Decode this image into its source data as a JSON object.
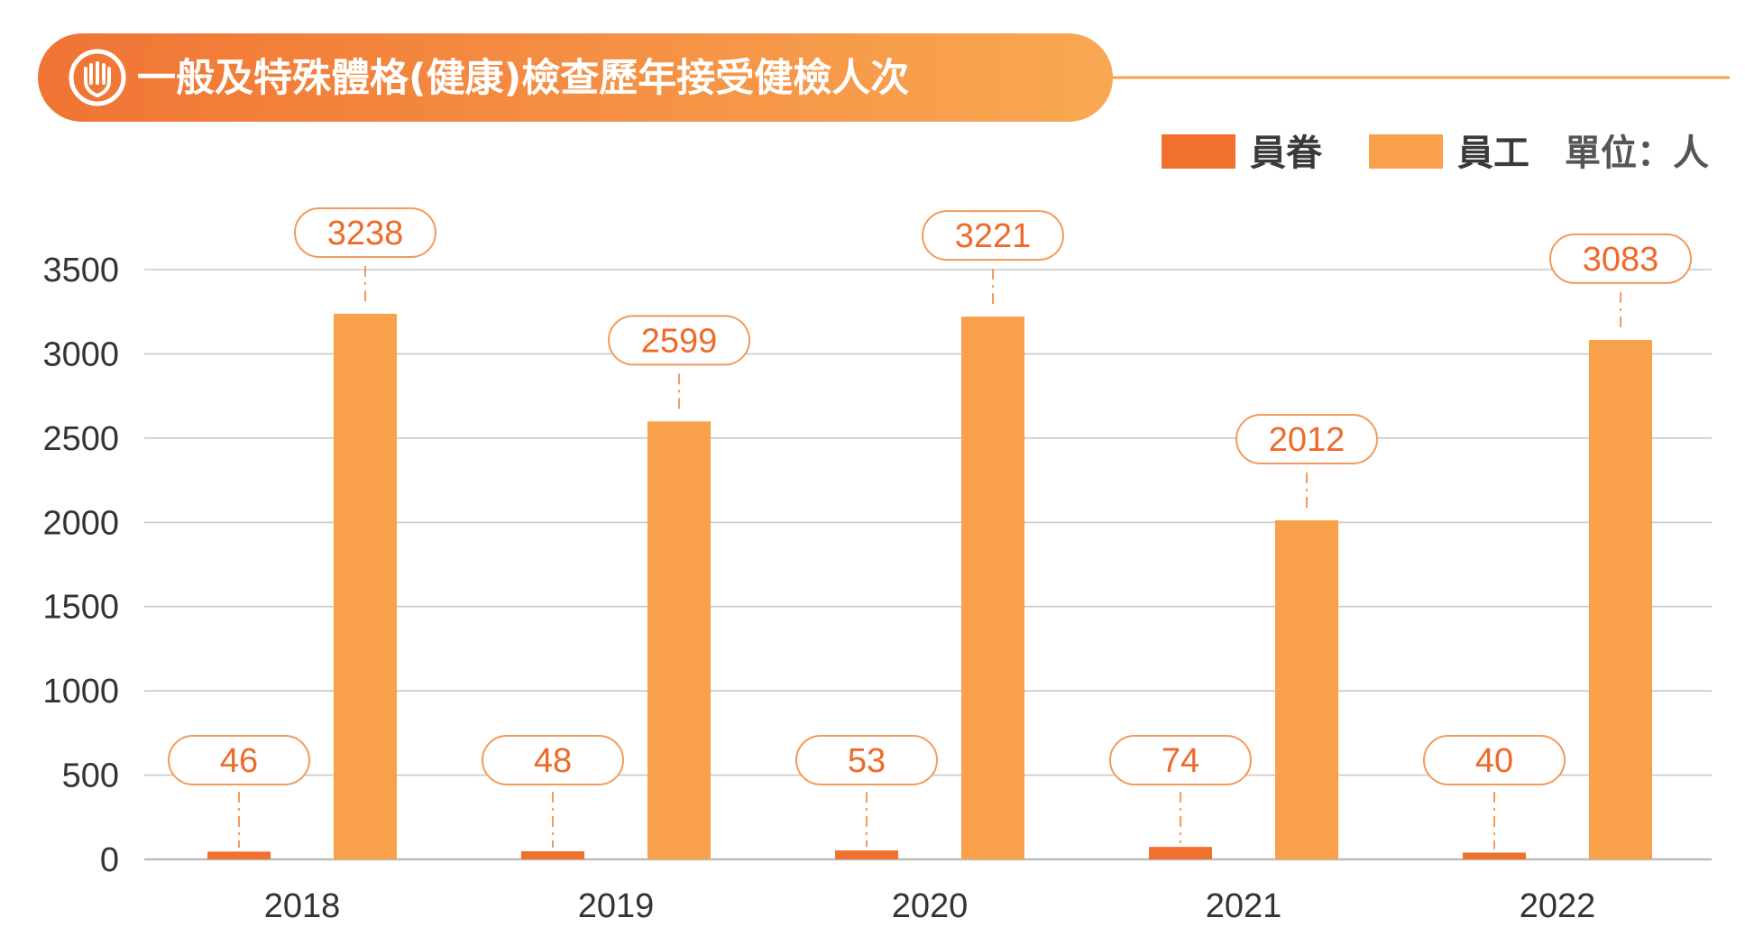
{
  "chart_data": {
    "type": "bar",
    "title": "一般及特殊體格(健康)檢查歷年接受健檢人次",
    "unit_label": "單位：人",
    "categories": [
      "2018",
      "2019",
      "2020",
      "2021",
      "2022"
    ],
    "series": [
      {
        "name": "員眷",
        "values": [
          46,
          48,
          53,
          74,
          40
        ],
        "color": "#f0712e"
      },
      {
        "name": "員工",
        "values": [
          3238,
          2599,
          3221,
          2012,
          3083
        ],
        "color": "#f8a04a"
      }
    ],
    "y_ticks": [
      "0",
      "500",
      "1000",
      "1500",
      "2000",
      "2500",
      "3000",
      "3500"
    ],
    "ylim": [
      0,
      3500
    ],
    "grid": true,
    "legend_position": "top-right"
  },
  "colors": {
    "title_banner_start": "#f07434",
    "title_banner_end": "#f9a852",
    "accent_line": "#f7a04a",
    "gridline": "#c8c8c8",
    "label_text": "#ee6a2a",
    "label_border": "#f29b5a"
  },
  "icons": {
    "title": "hand-shield-icon"
  }
}
